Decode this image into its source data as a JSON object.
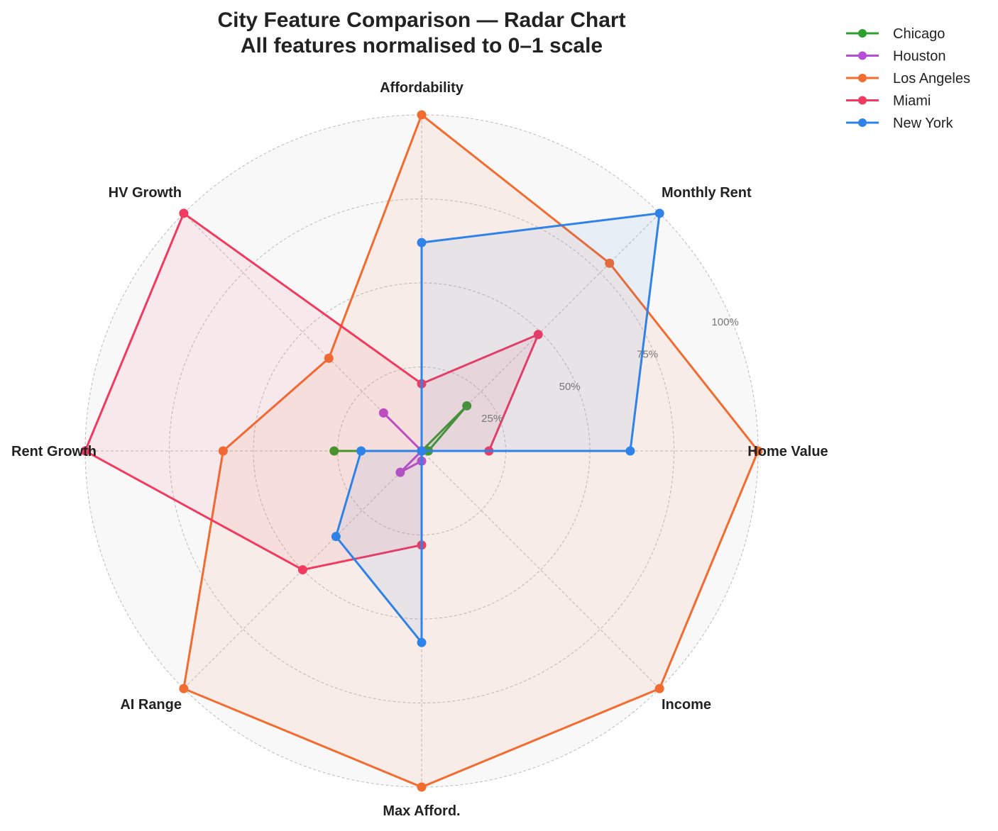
{
  "chart_data": {
    "type": "radar",
    "title_lines": [
      "City Feature Comparison — Radar Chart",
      "All features normalised to 0–1 scale"
    ],
    "axes": [
      "Home Value",
      "Monthly Rent",
      "Affordability",
      "HV Growth",
      "Rent Growth",
      "AI Range",
      "Max Afford.",
      "Income"
    ],
    "r_ticks": [
      0.25,
      0.5,
      0.75,
      1.0
    ],
    "r_tick_labels": [
      "25%",
      "50%",
      "75%",
      "100%"
    ],
    "r_range": [
      0,
      1
    ],
    "grid": true,
    "legend_position": "top-right",
    "series": [
      {
        "name": "Chicago",
        "color": "#2ca02c",
        "values": [
          0.02,
          0.19,
          0.0,
          0.0,
          0.26,
          0.0,
          0.0,
          0.0
        ]
      },
      {
        "name": "Houston",
        "color": "#b44fd6",
        "values": [
          0.0,
          0.0,
          0.0,
          0.16,
          0.0,
          0.09,
          0.03,
          0.0
        ]
      },
      {
        "name": "Los Angeles",
        "color": "#f26b2f",
        "values": [
          1.0,
          0.79,
          1.0,
          0.39,
          0.59,
          1.0,
          1.0,
          1.0
        ]
      },
      {
        "name": "Miami",
        "color": "#f03a5f",
        "values": [
          0.2,
          0.49,
          0.2,
          1.0,
          1.0,
          0.5,
          0.28,
          0.0
        ]
      },
      {
        "name": "New York",
        "color": "#2f82e8",
        "values": [
          0.62,
          1.0,
          0.62,
          0.0,
          0.18,
          0.36,
          0.57,
          0.0
        ]
      }
    ]
  }
}
